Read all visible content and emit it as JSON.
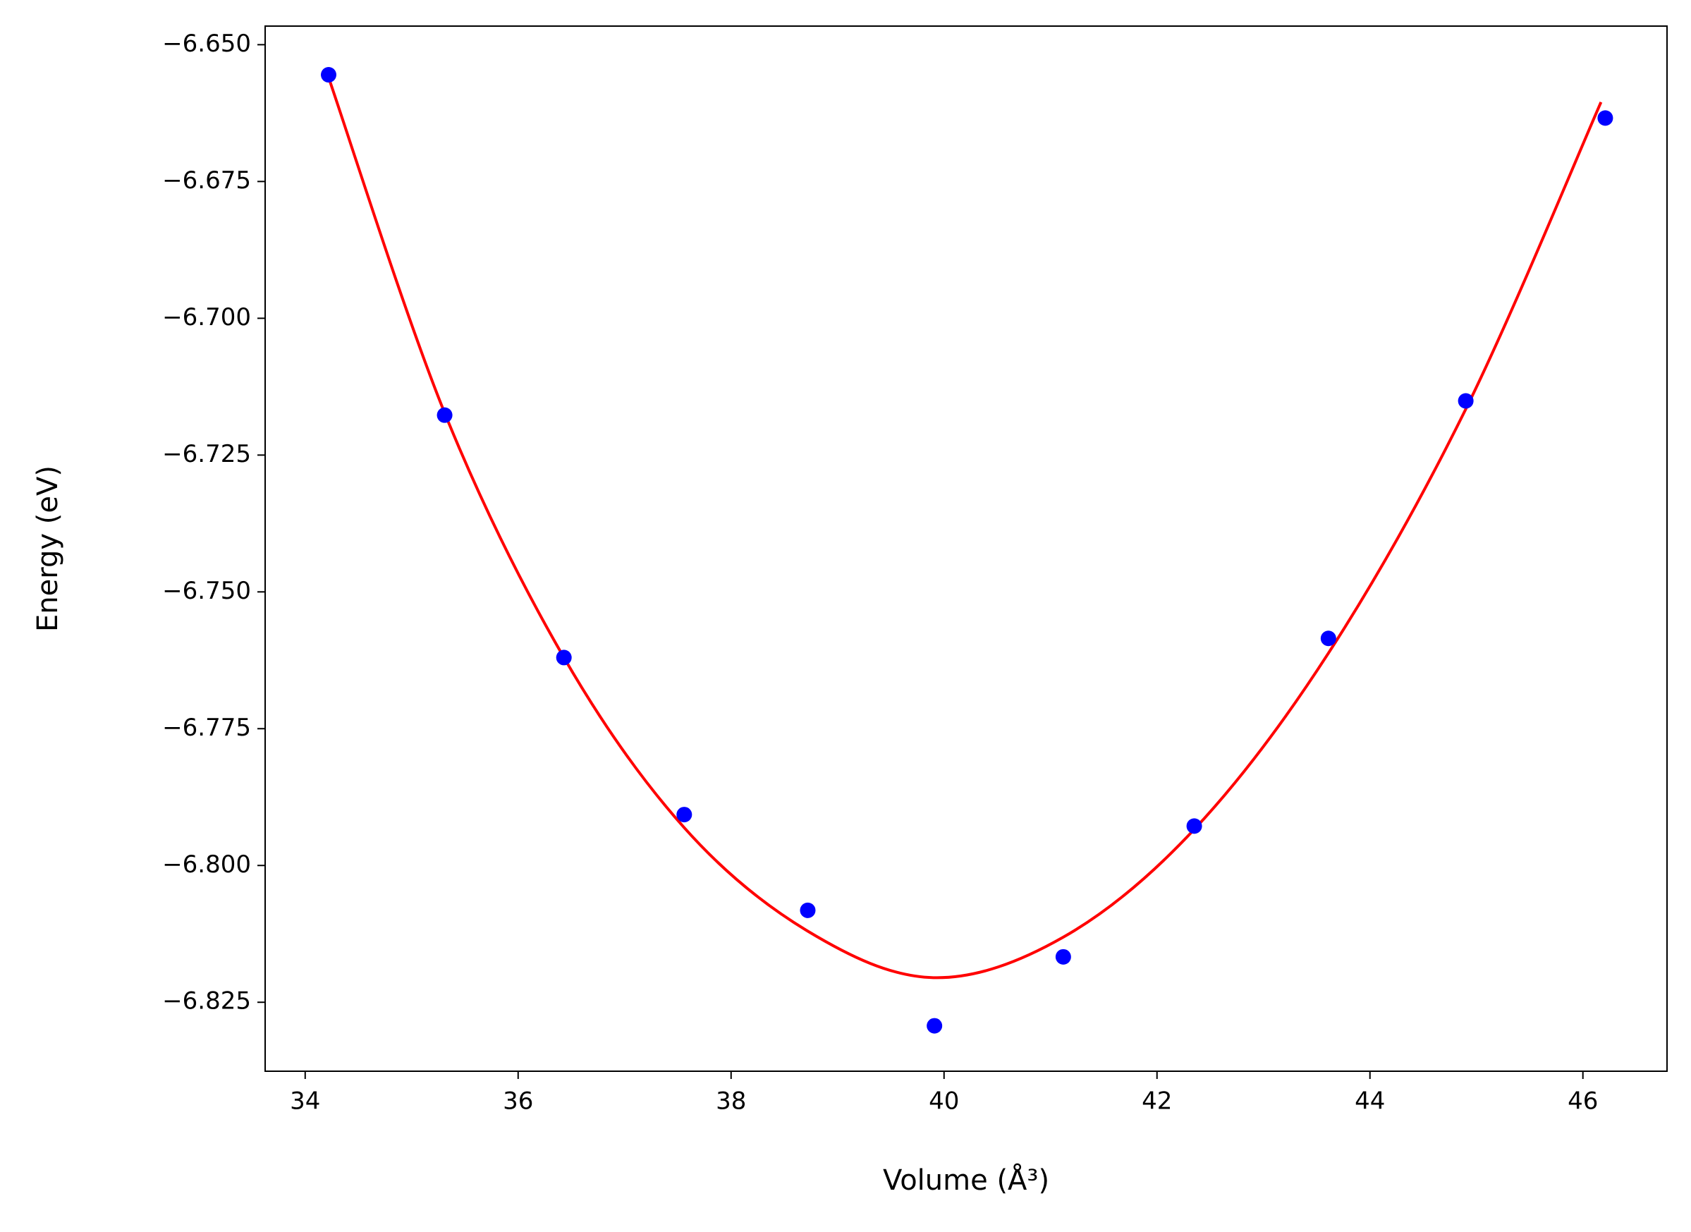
{
  "chart_data": {
    "type": "scatter",
    "xlabel": "Volume (Å³)",
    "ylabel": "Energy (eV)",
    "xlim": [
      33.624,
      46.79
    ],
    "ylim": [
      -6.8376,
      -6.6466
    ],
    "xticks": [
      34,
      36,
      38,
      40,
      42,
      44,
      46
    ],
    "yticks": [
      {
        "value": -6.65,
        "label": "−6.650"
      },
      {
        "value": -6.675,
        "label": "−6.675"
      },
      {
        "value": -6.7,
        "label": "−6.700"
      },
      {
        "value": -6.725,
        "label": "−6.725"
      },
      {
        "value": -6.75,
        "label": "−6.750"
      },
      {
        "value": -6.775,
        "label": "−6.775"
      },
      {
        "value": -6.8,
        "label": "−6.800"
      },
      {
        "value": -6.825,
        "label": "−6.825"
      }
    ],
    "series": [
      {
        "type": "line",
        "color": "#ff0000",
        "x": [
          34.22,
          35.31,
          36.43,
          37.56,
          38.72,
          39.9,
          41.12,
          42.35,
          43.61,
          44.9,
          46.17
        ],
        "values": [
          -6.656,
          -6.7173,
          -6.762,
          -6.7931,
          -6.812,
          -6.8205,
          -6.8131,
          -6.7934,
          -6.7612,
          -6.7166,
          -6.6605
        ]
      },
      {
        "type": "scatter",
        "color": "#0000ff",
        "x": [
          34.22,
          35.31,
          36.43,
          37.56,
          38.72,
          39.91,
          41.12,
          42.35,
          43.61,
          44.9,
          46.21
        ],
        "values": [
          -6.6555,
          -6.7177,
          -6.762,
          -6.7907,
          -6.8082,
          -6.8293,
          -6.8167,
          -6.7928,
          -6.7585,
          -6.7151,
          -6.6634
        ]
      }
    ]
  }
}
